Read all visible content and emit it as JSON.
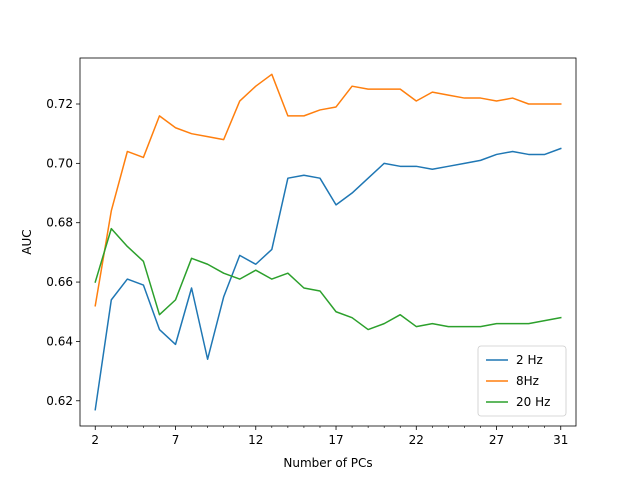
{
  "chart_data": {
    "type": "line",
    "title": "",
    "xlabel": "Number of PCs",
    "ylabel": "AUC",
    "xlim": [
      1.05,
      31.95
    ],
    "ylim": [
      0.6115,
      0.7355
    ],
    "x_ticks": [
      2,
      7,
      12,
      17,
      22,
      27,
      31
    ],
    "x_tick_labels": [
      "2",
      "7",
      "12",
      "17",
      "22",
      "27",
      "31"
    ],
    "x_minor_ticks": [
      3,
      4,
      5,
      6,
      8,
      9,
      10,
      11,
      13,
      14,
      15,
      16,
      18,
      19,
      20,
      21,
      23,
      24,
      25,
      26,
      28,
      29,
      30
    ],
    "y_ticks": [
      0.62,
      0.64,
      0.66,
      0.68,
      0.7,
      0.72
    ],
    "y_tick_labels": [
      "0.62",
      "0.64",
      "0.66",
      "0.68",
      "0.70",
      "0.72"
    ],
    "grid": false,
    "legend_position": "lower-right",
    "x": [
      2,
      3,
      4,
      5,
      6,
      7,
      8,
      9,
      10,
      11,
      12,
      13,
      14,
      15,
      16,
      17,
      18,
      19,
      20,
      21,
      22,
      23,
      24,
      25,
      26,
      27,
      28,
      29,
      30,
      31
    ],
    "series": [
      {
        "name": "2 Hz",
        "color": "#1f77b4",
        "values": [
          0.617,
          0.654,
          0.661,
          0.659,
          0.644,
          0.639,
          0.658,
          0.634,
          0.655,
          0.669,
          0.666,
          0.671,
          0.695,
          0.696,
          0.695,
          0.686,
          0.69,
          0.695,
          0.7,
          0.699,
          0.699,
          0.698,
          0.699,
          0.7,
          0.701,
          0.703,
          0.704,
          0.703,
          0.703,
          0.705
        ]
      },
      {
        "name": "8Hz",
        "color": "#ff7f0e",
        "values": [
          0.652,
          0.684,
          0.704,
          0.702,
          0.716,
          0.712,
          0.71,
          0.709,
          0.708,
          0.721,
          0.726,
          0.73,
          0.716,
          0.716,
          0.718,
          0.719,
          0.726,
          0.725,
          0.725,
          0.725,
          0.721,
          0.724,
          0.723,
          0.722,
          0.722,
          0.721,
          0.722,
          0.72,
          0.72,
          0.72
        ]
      },
      {
        "name": "20 Hz",
        "color": "#2ca02c",
        "values": [
          0.66,
          0.678,
          0.672,
          0.667,
          0.649,
          0.654,
          0.668,
          0.666,
          0.663,
          0.661,
          0.664,
          0.661,
          0.663,
          0.658,
          0.657,
          0.65,
          0.648,
          0.644,
          0.646,
          0.649,
          0.645,
          0.646,
          0.645,
          0.645,
          0.645,
          0.646,
          0.646,
          0.646,
          0.647,
          0.648
        ]
      }
    ]
  }
}
